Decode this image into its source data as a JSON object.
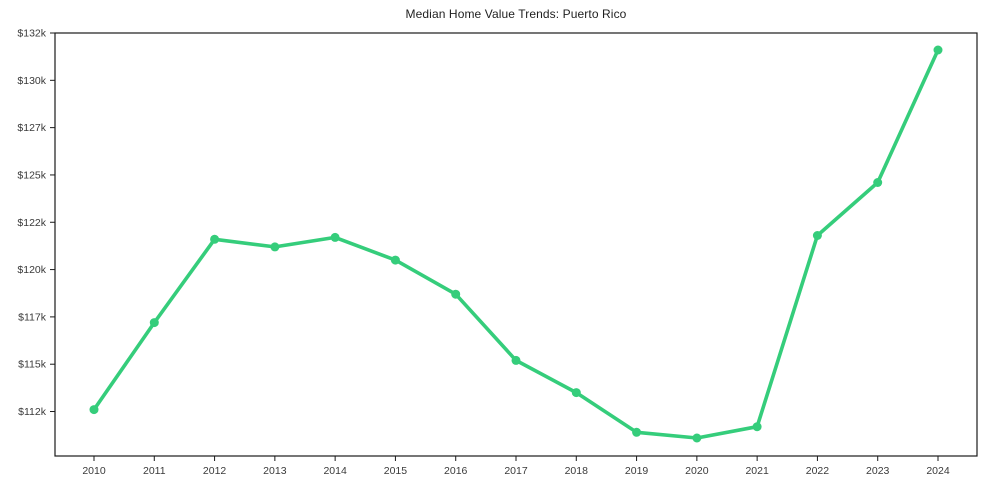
{
  "figure": {
    "title": "Median Home Value Trends: Puerto Rico"
  },
  "chart_data": {
    "type": "line",
    "title": "Median Home Value Trends: Puerto Rico",
    "xlabel": "",
    "ylabel": "",
    "grid": false,
    "legend_position": "none",
    "marker_style": "circle",
    "line_color": "#35cd7b",
    "axis_color": "#1a1a1a",
    "tick_label_color": "#3a3a3a",
    "categories": [
      "2010",
      "2011",
      "2012",
      "2013",
      "2014",
      "2015",
      "2016",
      "2017",
      "2018",
      "2019",
      "2020",
      "2021",
      "2022",
      "2023",
      "2024"
    ],
    "series": [
      {
        "name": "Median Home Value",
        "values": [
          112100,
          116700,
          121100,
          120700,
          121200,
          120000,
          118200,
          114700,
          113000,
          110900,
          110600,
          111200,
          121300,
          124100,
          131100
        ]
      }
    ],
    "y_ticks": [
      {
        "value": 132000,
        "label": "$132k"
      },
      {
        "value": 129500,
        "label": "$130k"
      },
      {
        "value": 127000,
        "label": "$127k"
      },
      {
        "value": 124500,
        "label": "$125k"
      },
      {
        "value": 122000,
        "label": "$122k"
      },
      {
        "value": 119500,
        "label": "$120k"
      },
      {
        "value": 117000,
        "label": "$117k"
      },
      {
        "value": 114500,
        "label": "$115k"
      },
      {
        "value": 112000,
        "label": "$112k"
      }
    ],
    "ylim": [
      109650,
      132000
    ]
  }
}
